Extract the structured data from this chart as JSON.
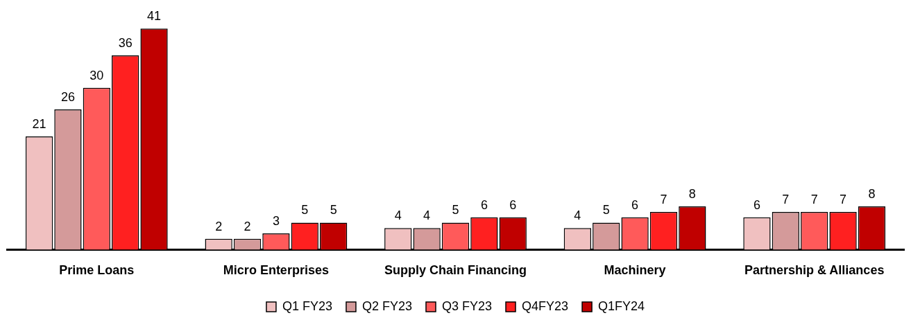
{
  "chart_data": {
    "type": "bar",
    "categories": [
      "Prime Loans",
      "Micro Enterprises",
      "Supply Chain Financing",
      "Machinery",
      "Partnership & Alliances"
    ],
    "series": [
      {
        "name": "Q1 FY23",
        "color": "#f0c0c0",
        "values": [
          21,
          2,
          4,
          4,
          6
        ]
      },
      {
        "name": "Q2 FY23",
        "color": "#d49a9a",
        "values": [
          26,
          2,
          4,
          5,
          7
        ]
      },
      {
        "name": "Q3 FY23",
        "color": "#ff5a5a",
        "values": [
          30,
          3,
          5,
          6,
          7
        ]
      },
      {
        "name": "Q4FY23",
        "color": "#ff2020",
        "values": [
          36,
          5,
          6,
          7,
          7
        ]
      },
      {
        "name": "Q1FY24",
        "color": "#c00000",
        "values": [
          41,
          5,
          6,
          8,
          8
        ]
      }
    ],
    "data_labels": true,
    "grid": false,
    "legend": "bottom"
  }
}
